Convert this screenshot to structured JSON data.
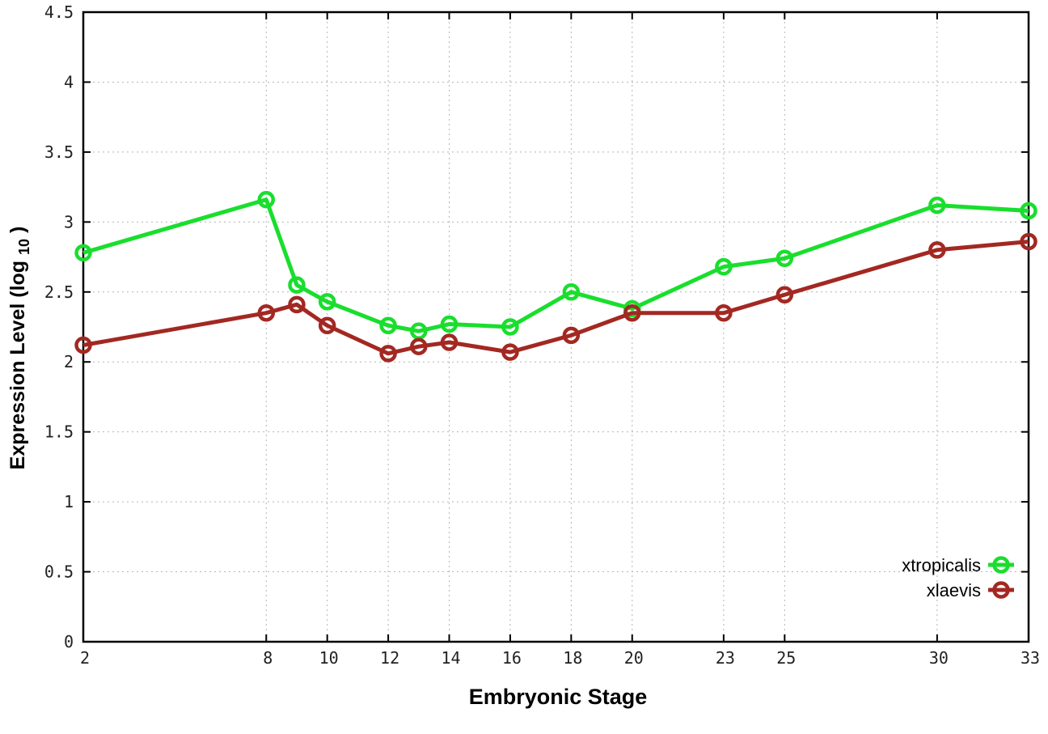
{
  "chart_data": {
    "type": "line",
    "title": "",
    "xlabel": "Embryonic Stage",
    "ylabel": "Expression Level (log10)",
    "ylabel_parts": {
      "prefix": "Expression Level (log",
      "subscript": "10",
      "suffix": ")"
    },
    "xlim": [
      2,
      33
    ],
    "ylim": [
      0,
      4.5
    ],
    "xticks": [
      2,
      8,
      10,
      12,
      14,
      16,
      18,
      20,
      23,
      25,
      30,
      33
    ],
    "yticks": [
      0,
      0.5,
      1,
      1.5,
      2,
      2.5,
      3,
      3.5,
      4,
      4.5
    ],
    "grid": true,
    "legend_position": "bottom-right",
    "x": [
      2,
      8,
      9,
      10,
      12,
      13,
      14,
      16,
      18,
      20,
      23,
      25,
      30,
      33
    ],
    "series": [
      {
        "name": "xtropicalis",
        "color": "#19de2d",
        "values": [
          2.78,
          3.16,
          2.55,
          2.43,
          2.26,
          2.22,
          2.27,
          2.25,
          2.5,
          2.38,
          2.68,
          2.74,
          3.12,
          3.08
        ]
      },
      {
        "name": "xlaevis",
        "color": "#a32822",
        "values": [
          2.12,
          2.35,
          2.41,
          2.26,
          2.06,
          2.11,
          2.14,
          2.07,
          2.19,
          2.35,
          2.35,
          2.48,
          2.8,
          2.86
        ]
      }
    ]
  },
  "style": {
    "axis_color": "#000000",
    "tick_label_color": "#222222",
    "grid_color": "#b4b4b4",
    "background": "#ffffff"
  }
}
